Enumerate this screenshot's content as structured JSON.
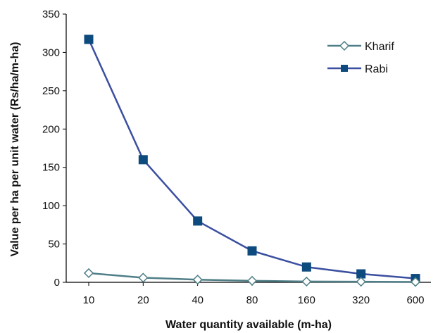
{
  "chart_data": {
    "type": "line",
    "categories": [
      "10",
      "20",
      "40",
      "80",
      "160",
      "320",
      "600"
    ],
    "series": [
      {
        "name": "Kharif",
        "values": [
          12,
          6,
          3.5,
          2,
          1,
          0.8,
          0.5
        ],
        "color": "#4f7e87",
        "marker": "open-diamond"
      },
      {
        "name": "Rabi",
        "values": [
          317,
          160,
          80,
          41,
          20,
          11,
          5
        ],
        "color": "#3b4fa0",
        "marker": "filled-square",
        "marker_color": "#0d4a7d"
      }
    ],
    "xlabel": "Water quantity available (m-ha)",
    "ylabel": "Value per ha per unit water (Rs/ha/m-ha)",
    "ylim": [
      0,
      350
    ],
    "yticks": [
      "0",
      "50",
      "100",
      "150",
      "200",
      "250",
      "300",
      "350"
    ],
    "grid": false,
    "legend_position": "top-right"
  }
}
